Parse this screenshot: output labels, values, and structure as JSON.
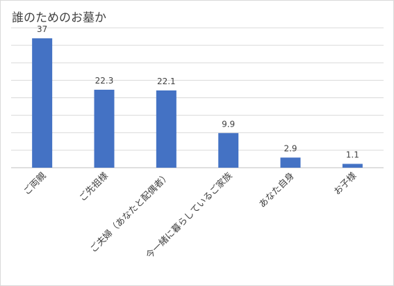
{
  "chart_data": {
    "type": "bar",
    "title": "誰のためのお墓か",
    "categories": [
      "ご両親",
      "ご先祖様",
      "ご夫婦（あなたと配偶者）",
      "今一緒に暮らしているご家族",
      "あなた自身",
      "お子様"
    ],
    "values": [
      37,
      22.3,
      22.1,
      9.9,
      2.9,
      1.1
    ],
    "data_labels": [
      "37",
      "22.3",
      "22.1",
      "9.9",
      "2.9",
      "1.1"
    ],
    "ylim": [
      0,
      40
    ],
    "y_grid_step": 5,
    "grid": true,
    "y_axis_labels_visible": false,
    "bar_color": "#4472c4",
    "grid_color": "#d9d9d9",
    "axis_color": "#bfbfbf"
  }
}
